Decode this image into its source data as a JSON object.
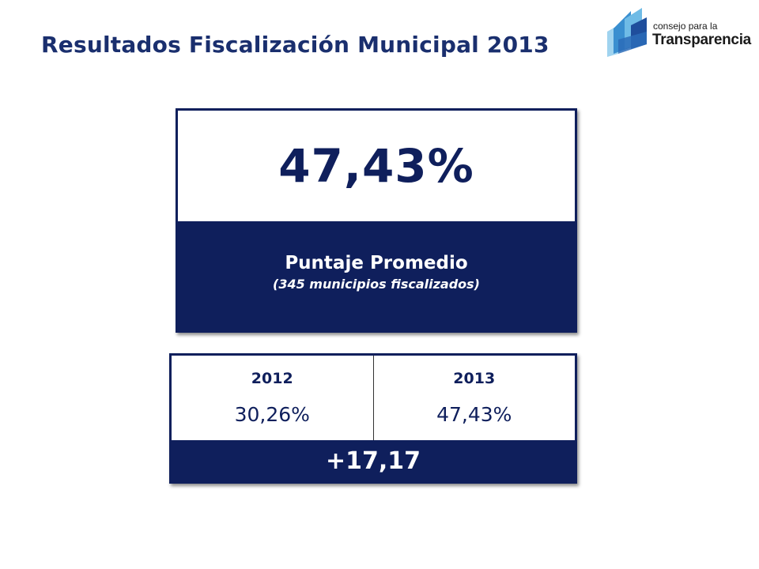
{
  "title": "Resultados Fiscalización Municipal 2013",
  "logo": {
    "small_text": "consejo para la",
    "big_text": "Transparencia"
  },
  "score": {
    "value": "47,43%",
    "label": "Puntaje Promedio",
    "sublabel": "(345 municipios fiscalizados)"
  },
  "comparison": {
    "columns": [
      {
        "year": "2012",
        "value": "30,26%"
      },
      {
        "year": "2013",
        "value": "47,43%"
      }
    ],
    "difference": "+17,17"
  },
  "colors": {
    "title": "#1a2f6e",
    "navy": "#0f1f5c",
    "logo_light_blue": "#7fc4ea",
    "logo_mid_blue": "#3a8fd0",
    "logo_dark_blue": "#1f4e9c"
  }
}
